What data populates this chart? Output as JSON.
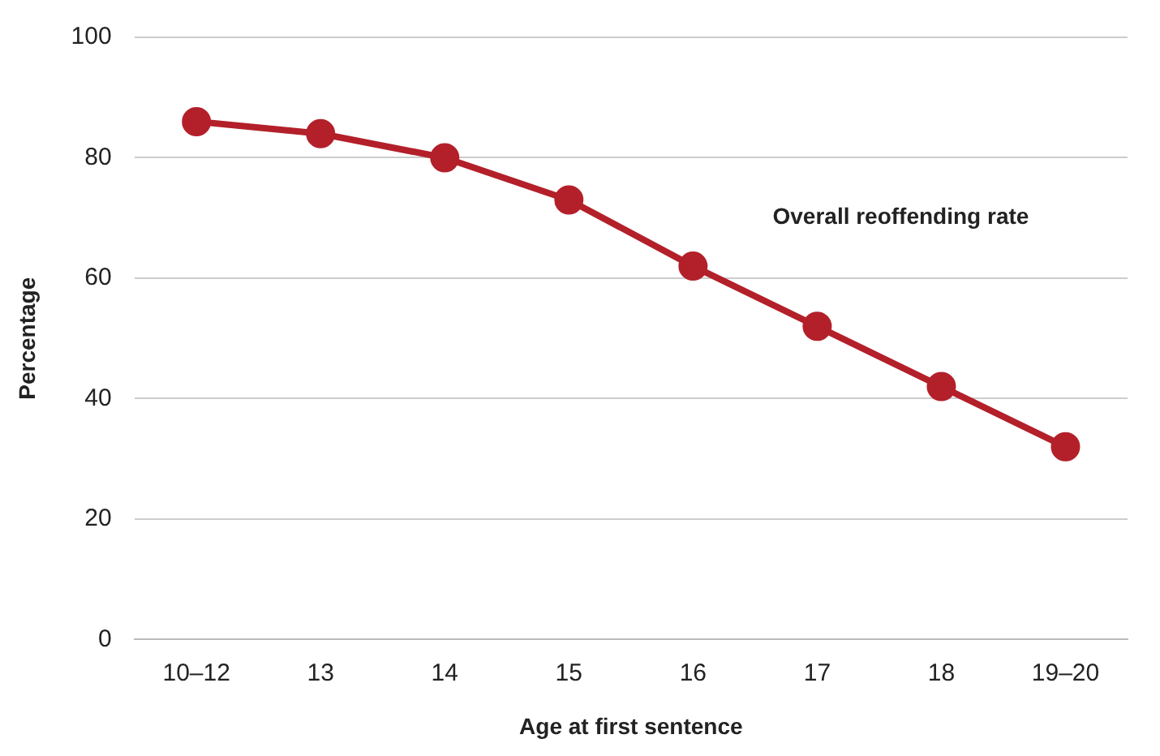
{
  "chart_data": {
    "type": "line",
    "xlabel": "Age at first sentence",
    "ylabel": "Percentage",
    "categories": [
      "10–12",
      "13",
      "14",
      "15",
      "16",
      "17",
      "18",
      "19–20"
    ],
    "series": [
      {
        "name": "Overall reoffending rate",
        "color": "#b3202a",
        "values": [
          86,
          84,
          80,
          73,
          62,
          52,
          42,
          32
        ]
      }
    ],
    "ylim": [
      0,
      100
    ],
    "yticks": [
      0,
      20,
      40,
      60,
      80,
      100
    ],
    "grid": "y",
    "marker": "circle",
    "line_style": "solid",
    "legend": false
  }
}
